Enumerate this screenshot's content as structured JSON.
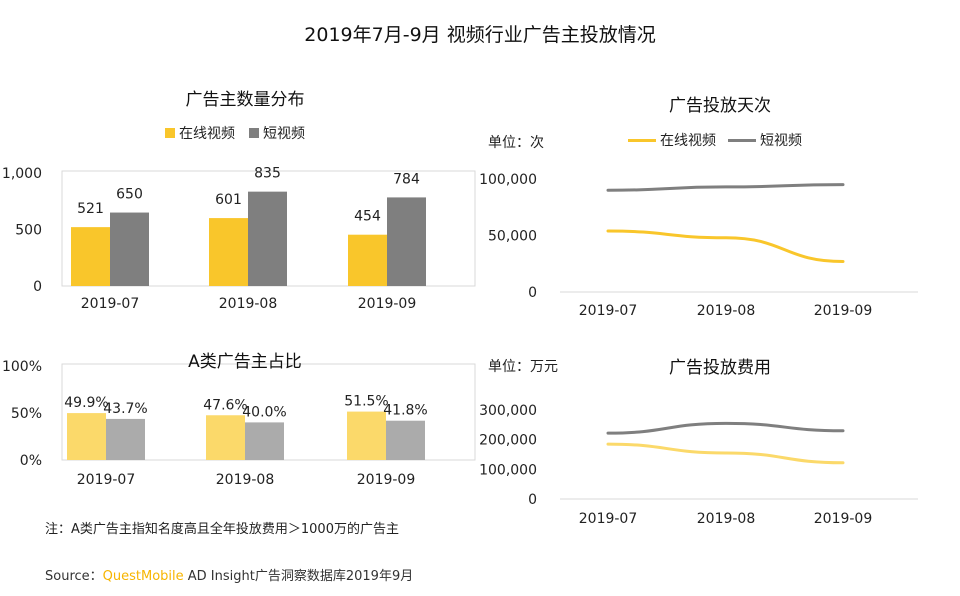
{
  "title": "2019年7月-9月 视频行业广告主投放情况",
  "colors": {
    "online": "#f9c62b",
    "short": "#7f7f7f",
    "online_light": "#fbd96a",
    "short_light": "#ababab",
    "brand": "#f7b500"
  },
  "chart_data": [
    {
      "type": "bar",
      "title": "广告主数量分布",
      "categories": [
        "2019-07",
        "2019-08",
        "2019-09"
      ],
      "series": [
        {
          "name": "在线视频",
          "values": [
            521,
            601,
            454
          ],
          "labels": [
            "521",
            "601",
            "454"
          ]
        },
        {
          "name": "短视频",
          "values": [
            650,
            835,
            784
          ],
          "labels": [
            "650",
            "835",
            "784"
          ]
        }
      ],
      "ylim": [
        0,
        1000
      ],
      "yticks": [
        "0",
        "500",
        "1,000"
      ],
      "ytick_values": [
        0,
        500,
        1000
      ]
    },
    {
      "type": "line",
      "title": "广告投放天次",
      "unit": "单位：次",
      "categories": [
        "2019-07",
        "2019-08",
        "2019-09"
      ],
      "series": [
        {
          "name": "在线视频",
          "values": [
            54000,
            48000,
            27000
          ]
        },
        {
          "name": "短视频",
          "values": [
            90000,
            93000,
            95000
          ]
        }
      ],
      "ylim": [
        0,
        100000
      ],
      "yticks": [
        "0",
        "50,000",
        "100,000"
      ],
      "ytick_values": [
        0,
        50000,
        100000
      ]
    },
    {
      "type": "bar",
      "title": "A类广告主占比",
      "categories": [
        "2019-07",
        "2019-08",
        "2019-09"
      ],
      "series": [
        {
          "name": "在线视频",
          "values": [
            49.9,
            47.6,
            51.5
          ],
          "labels": [
            "49.9%",
            "47.6%",
            "51.5%"
          ]
        },
        {
          "name": "短视频",
          "values": [
            43.7,
            40.0,
            41.8
          ],
          "labels": [
            "43.7%",
            "40.0%",
            "41.8%"
          ]
        }
      ],
      "ylim": [
        0,
        100
      ],
      "yticks": [
        "0%",
        "50%",
        "100%"
      ],
      "ytick_values": [
        0,
        50,
        100
      ]
    },
    {
      "type": "line",
      "title": "广告投放费用",
      "unit": "单位：万元",
      "categories": [
        "2019-07",
        "2019-08",
        "2019-09"
      ],
      "series": [
        {
          "name": "在线视频",
          "values": [
            185000,
            155000,
            122000
          ]
        },
        {
          "name": "短视频",
          "values": [
            222000,
            255000,
            230000
          ]
        }
      ],
      "ylim": [
        0,
        300000
      ],
      "yticks": [
        "0",
        "100,000",
        "200,000",
        "300,000"
      ],
      "ytick_values": [
        0,
        100000,
        200000,
        300000
      ]
    }
  ],
  "note": "注：A类广告主指知名度高且全年投放费用＞1000万的广告主",
  "source": {
    "prefix": "Source：",
    "brand": "QuestMobile",
    "suffix": " AD Insight广告洞察数据库2019年9月"
  }
}
